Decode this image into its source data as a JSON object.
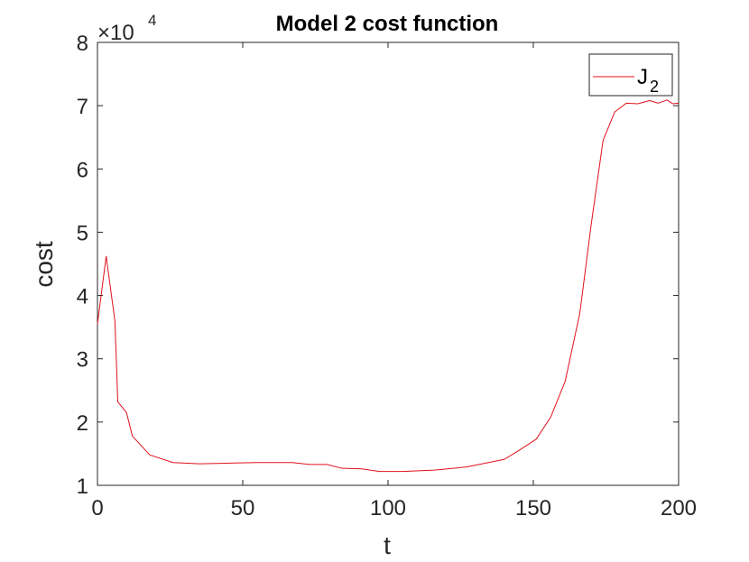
{
  "chart_data": {
    "type": "line",
    "title": "Model 2 cost function",
    "xlabel": "t",
    "ylabel": "cost",
    "exponent_label": "×10",
    "exponent_power": "4",
    "xlim": [
      0,
      200
    ],
    "ylim": [
      1,
      8
    ],
    "xticks": [
      0,
      50,
      100,
      150,
      200
    ],
    "yticks": [
      1,
      2,
      3,
      4,
      5,
      6,
      7,
      8
    ],
    "grid": false,
    "legend": {
      "position": "top-right",
      "label_main": "J",
      "label_sub": "2"
    },
    "series": [
      {
        "name": "J2",
        "color": "#e0101c",
        "x": [
          0,
          3,
          6,
          7,
          10,
          12,
          18,
          26,
          35,
          45,
          55,
          67,
          73,
          79,
          84,
          91,
          97,
          105,
          116,
          127,
          140,
          145,
          151,
          156,
          161,
          166,
          170,
          174,
          178,
          182,
          186,
          190,
          193,
          196,
          198,
          200
        ],
        "y": [
          3.55,
          4.62,
          3.6,
          2.32,
          2.15,
          1.78,
          1.48,
          1.36,
          1.34,
          1.35,
          1.36,
          1.36,
          1.33,
          1.33,
          1.27,
          1.26,
          1.22,
          1.22,
          1.24,
          1.29,
          1.41,
          1.55,
          1.73,
          2.08,
          2.65,
          3.72,
          5.15,
          6.45,
          6.9,
          7.04,
          7.03,
          7.08,
          7.04,
          7.09,
          7.03,
          7.04
        ]
      }
    ]
  }
}
